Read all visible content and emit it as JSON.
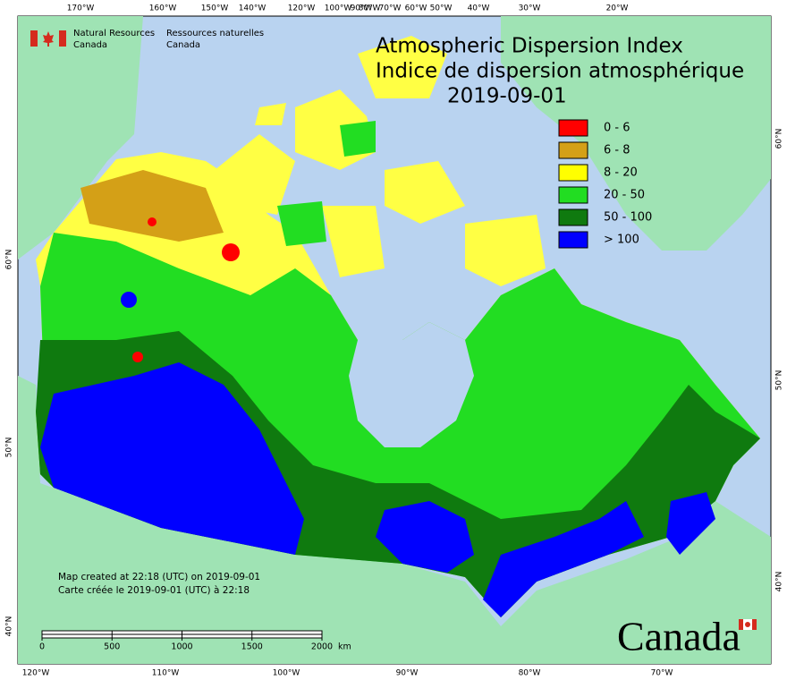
{
  "header": {
    "agency_en": "Natural Resources",
    "country_en": "Canada",
    "agency_fr": "Ressources naturelles",
    "country_fr": "Canada"
  },
  "title": {
    "en": "Atmospheric Dispersion Index",
    "fr": "Indice de dispersion atmosphérique",
    "date": "2019-09-01"
  },
  "legend": [
    {
      "label": "0 - 6",
      "color": "#ff0000"
    },
    {
      "label": "6 - 8",
      "color": "#d4a017"
    },
    {
      "label": "8 - 20",
      "color": "#ffff00"
    },
    {
      "label": "20 - 50",
      "color": "#22dd22"
    },
    {
      "label": "50 - 100",
      "color": "#0f7a0f"
    },
    {
      "label": "> 100",
      "color": "#0000ff"
    }
  ],
  "top_ticks": [
    "170°W",
    "160°W",
    "150°W",
    "140°W",
    "120°W",
    "100°W",
    "90°W",
    "80°W",
    "70°W",
    "60°W",
    "50°W",
    "40°W",
    "30°W",
    "20°W"
  ],
  "bottom_ticks": [
    "120°W",
    "110°W",
    "100°W",
    "90°W",
    "80°W",
    "70°W"
  ],
  "left_ticks": [
    "60°N",
    "50°N",
    "40°N"
  ],
  "right_ticks": [
    "60°N",
    "50°N",
    "40°N"
  ],
  "footnote": [
    "Map created at 22:18 (UTC) on 2019-09-01",
    "Carte créée le 2019-09-01 (UTC) à 22:18"
  ],
  "scale_bar": {
    "labels": [
      0,
      500,
      1000,
      1500,
      2000
    ],
    "unit": "km"
  },
  "wordmark": "Canada"
}
